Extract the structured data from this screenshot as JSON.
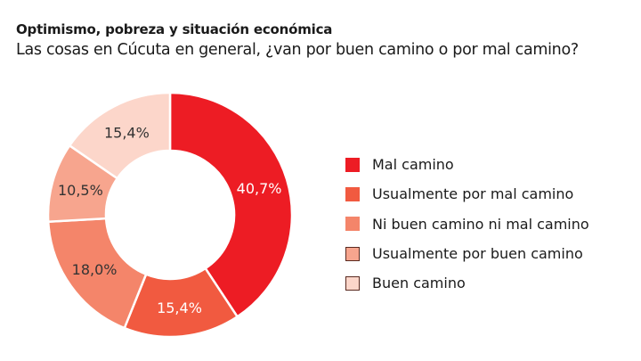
{
  "title": "Optimismo, pobreza y situación económica",
  "subtitle": "Las cosas en Cúcuta en general, ¿van por buen camino o por mal camino?",
  "chart_data": {
    "type": "pie",
    "donut": true,
    "categories": [
      "Mal camino",
      "Usualmente por mal camino",
      "Ni buen camino ni mal camino",
      "Usualmente por buen camino",
      "Buen camino"
    ],
    "values": [
      40.7,
      15.4,
      18.0,
      10.5,
      15.4
    ],
    "data_labels": [
      "40,7%",
      "15,4%",
      "18,0%",
      "10,5%",
      "15,4%"
    ],
    "colors": [
      "#ed1c24",
      "#f15a40",
      "#f4856a",
      "#f7a58e",
      "#fcd6ca"
    ],
    "label_colors": [
      "#ffffff",
      "#ffffff",
      "#333333",
      "#333333",
      "#333333"
    ],
    "legend_position": "right"
  }
}
